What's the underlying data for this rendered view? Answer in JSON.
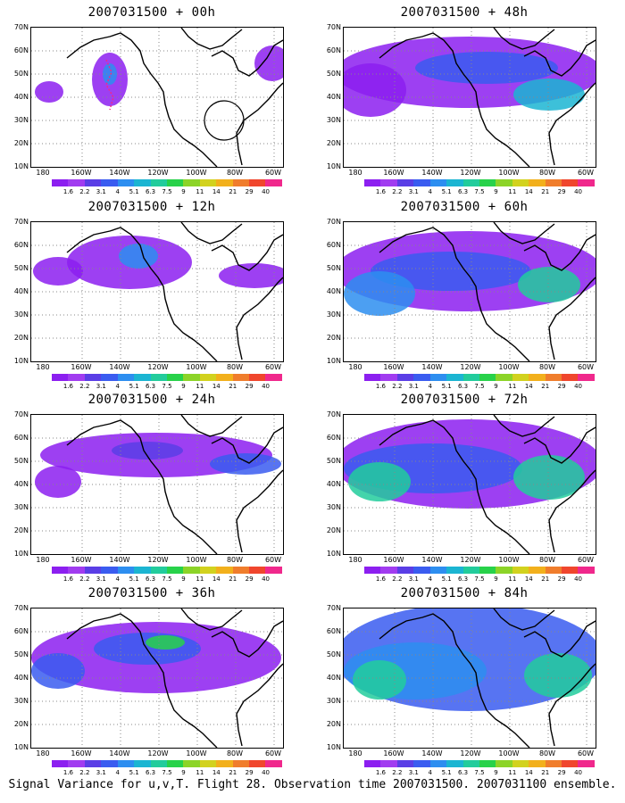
{
  "panels": [
    {
      "title": "2007031500 + 00h"
    },
    {
      "title": "2007031500 + 48h"
    },
    {
      "title": "2007031500 + 12h"
    },
    {
      "title": "2007031500 + 60h"
    },
    {
      "title": "2007031500 + 24h"
    },
    {
      "title": "2007031500 + 72h"
    },
    {
      "title": "2007031500 + 36h"
    },
    {
      "title": "2007031500 + 84h"
    }
  ],
  "lat_labels": [
    "70N",
    "60N",
    "50N",
    "40N",
    "30N",
    "20N",
    "10N"
  ],
  "lon_labels": [
    "180",
    "160W",
    "140W",
    "120W",
    "100W",
    "80W",
    "60W"
  ],
  "colorbar": {
    "labels": [
      "1.6",
      "2.2",
      "3.1",
      "4",
      "5.1",
      "6.3",
      "7.5",
      "9",
      "11",
      "14",
      "21",
      "29",
      "40"
    ],
    "colors": [
      "#8c1ff0",
      "#a13cf0",
      "#5a3ee6",
      "#3a5cf0",
      "#2d8ef0",
      "#1bb5d2",
      "#22cc9c",
      "#28d24a",
      "#8cd428",
      "#d2d21e",
      "#f2b01c",
      "#f07d2c",
      "#f0462d",
      "#f0288c"
    ]
  },
  "footer": "Signal Variance for u,v,T. Flight 28. Observation time 2007031500. 2007031100 ensemble."
}
